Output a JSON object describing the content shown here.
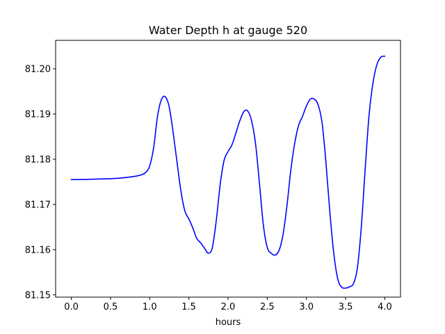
{
  "chart_data": {
    "type": "line",
    "title": "Water Depth h at gauge 520",
    "xlabel": "hours",
    "ylabel": "",
    "xlim": [
      -0.2,
      4.2
    ],
    "ylim": [
      81.1495,
      81.2063
    ],
    "xticks": [
      0.0,
      0.5,
      1.0,
      1.5,
      2.0,
      2.5,
      3.0,
      3.5,
      4.0
    ],
    "xtick_labels": [
      "0.0",
      "0.5",
      "1.0",
      "1.5",
      "2.0",
      "2.5",
      "3.0",
      "3.5",
      "4.0"
    ],
    "yticks": [
      81.15,
      81.16,
      81.17,
      81.18,
      81.19,
      81.2
    ],
    "ytick_labels": [
      "81.15",
      "81.16",
      "81.17",
      "81.18",
      "81.19",
      "81.20"
    ],
    "grid": false,
    "series": [
      {
        "color": "#0000ff",
        "x": [
          0.0,
          0.3,
          0.6,
          0.8,
          0.9,
          0.95,
          1.0,
          1.05,
          1.1,
          1.15,
          1.2,
          1.25,
          1.3,
          1.35,
          1.4,
          1.45,
          1.5,
          1.55,
          1.6,
          1.65,
          1.7,
          1.75,
          1.8,
          1.85,
          1.9,
          1.95,
          2.0,
          2.05,
          2.1,
          2.15,
          2.2,
          2.25,
          2.3,
          2.35,
          2.4,
          2.45,
          2.5,
          2.55,
          2.6,
          2.65,
          2.7,
          2.75,
          2.8,
          2.85,
          2.9,
          2.95,
          3.0,
          3.05,
          3.1,
          3.15,
          3.2,
          3.25,
          3.3,
          3.35,
          3.4,
          3.45,
          3.5,
          3.55,
          3.6,
          3.65,
          3.7,
          3.75,
          3.8,
          3.85,
          3.9,
          3.95,
          4.0
        ],
        "y": [
          81.1755,
          81.1756,
          81.1758,
          81.1762,
          81.1766,
          81.1771,
          81.1785,
          81.1825,
          81.1895,
          81.1932,
          81.1938,
          81.1915,
          81.1858,
          81.1792,
          81.1728,
          81.1685,
          81.1668,
          81.1648,
          81.1625,
          81.1615,
          81.1603,
          81.1592,
          81.1605,
          81.1665,
          81.1745,
          81.1798,
          81.1817,
          81.1832,
          81.1858,
          81.1885,
          81.1905,
          81.1907,
          81.1885,
          81.1835,
          81.1748,
          81.1655,
          81.1605,
          81.1592,
          81.1588,
          81.1598,
          81.1632,
          81.1695,
          81.1775,
          81.1835,
          81.1875,
          81.1895,
          81.1918,
          81.1933,
          81.1933,
          81.192,
          81.188,
          81.179,
          81.168,
          81.159,
          81.1535,
          81.1517,
          81.1515,
          81.1518,
          81.1525,
          81.156,
          81.165,
          81.178,
          81.19,
          81.197,
          81.201,
          81.2026,
          81.2028
        ]
      }
    ]
  }
}
